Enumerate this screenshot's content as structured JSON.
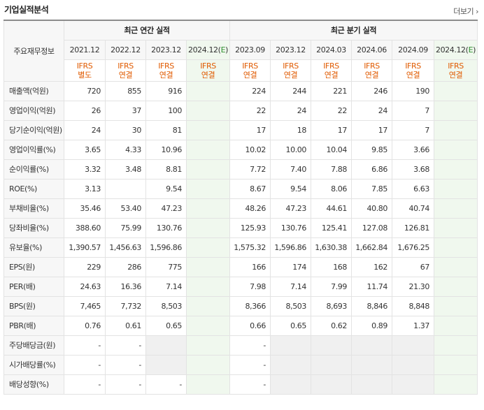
{
  "header": {
    "title": "기업실적분석",
    "more": "더보기",
    "more_arrow": "›"
  },
  "table": {
    "row_header_label": "주요재무정보",
    "groups": [
      "최근 연간 실적",
      "최근 분기 실적"
    ],
    "periods": [
      "2021.12",
      "2022.12",
      "2023.12",
      "2024.12(E)",
      "2023.09",
      "2023.12",
      "2024.03",
      "2024.06",
      "2024.09",
      "2024.12(E)"
    ],
    "standards": [
      [
        "IFRS",
        "별도"
      ],
      [
        "IFRS",
        "연결"
      ],
      [
        "IFRS",
        "연결"
      ],
      [
        "IFRS",
        "연결"
      ],
      [
        "IFRS",
        "연결"
      ],
      [
        "IFRS",
        "연결"
      ],
      [
        "IFRS",
        "연결"
      ],
      [
        "IFRS",
        "연결"
      ],
      [
        "IFRS",
        "연결"
      ],
      [
        "IFRS",
        "연결"
      ]
    ],
    "rows": [
      {
        "label": "매출액(억원)",
        "values": [
          "720",
          "855",
          "916",
          "",
          "224",
          "244",
          "221",
          "246",
          "190",
          ""
        ]
      },
      {
        "label": "영업이익(억원)",
        "values": [
          "26",
          "37",
          "100",
          "",
          "22",
          "24",
          "22",
          "24",
          "7",
          ""
        ]
      },
      {
        "label": "당기순이익(억원)",
        "values": [
          "24",
          "30",
          "81",
          "",
          "17",
          "18",
          "17",
          "17",
          "7",
          ""
        ]
      },
      {
        "label": "영업이익률(%)",
        "values": [
          "3.65",
          "4.33",
          "10.96",
          "",
          "10.02",
          "10.00",
          "10.04",
          "9.85",
          "3.66",
          ""
        ]
      },
      {
        "label": "순이익률(%)",
        "values": [
          "3.32",
          "3.48",
          "8.81",
          "",
          "7.72",
          "7.40",
          "7.88",
          "6.86",
          "3.68",
          ""
        ]
      },
      {
        "label": "ROE(%)",
        "values": [
          "3.13",
          "",
          "9.54",
          "",
          "8.67",
          "9.54",
          "8.06",
          "7.85",
          "6.63",
          ""
        ]
      },
      {
        "label": "부채비율(%)",
        "values": [
          "35.46",
          "53.40",
          "47.23",
          "",
          "48.26",
          "47.23",
          "44.61",
          "40.80",
          "40.74",
          ""
        ]
      },
      {
        "label": "당좌비율(%)",
        "values": [
          "388.60",
          "75.99",
          "130.76",
          "",
          "125.93",
          "130.76",
          "125.41",
          "127.08",
          "126.81",
          ""
        ]
      },
      {
        "label": "유보율(%)",
        "values": [
          "1,390.57",
          "1,456.63",
          "1,596.86",
          "",
          "1,575.32",
          "1,596.86",
          "1,630.38",
          "1,662.84",
          "1,676.25",
          ""
        ]
      },
      {
        "label": "EPS(원)",
        "values": [
          "229",
          "286",
          "775",
          "",
          "166",
          "174",
          "168",
          "162",
          "67",
          ""
        ]
      },
      {
        "label": "PER(배)",
        "values": [
          "24.63",
          "16.36",
          "7.14",
          "",
          "7.98",
          "7.14",
          "7.99",
          "11.74",
          "21.30",
          ""
        ]
      },
      {
        "label": "BPS(원)",
        "values": [
          "7,465",
          "7,732",
          "8,503",
          "",
          "8,366",
          "8,503",
          "8,693",
          "8,846",
          "8,848",
          ""
        ]
      },
      {
        "label": "PBR(배)",
        "values": [
          "0.76",
          "0.61",
          "0.65",
          "",
          "0.66",
          "0.65",
          "0.62",
          "0.89",
          "1.37",
          ""
        ]
      },
      {
        "label": "주당배당금(원)",
        "values": [
          "-",
          "-",
          "",
          "",
          "-",
          "",
          "",
          "",
          "",
          ""
        ]
      },
      {
        "label": "시가배당률(%)",
        "values": [
          "-",
          "-",
          "",
          "",
          "-",
          "",
          "",
          "",
          "",
          ""
        ]
      },
      {
        "label": "배당성향(%)",
        "values": [
          "-",
          "-",
          "-",
          "",
          "-",
          "",
          "",
          "",
          "",
          ""
        ]
      }
    ]
  }
}
